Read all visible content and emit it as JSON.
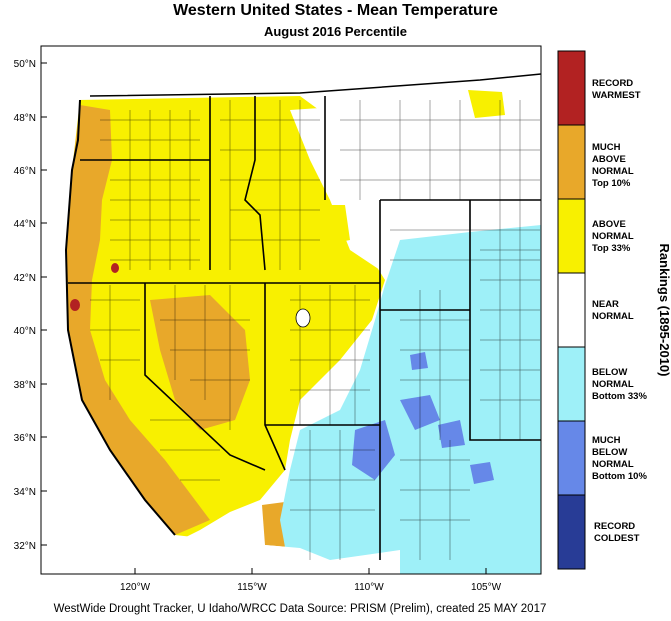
{
  "title": "Western United States - Mean Temperature",
  "subtitle": "August 2016 Percentile",
  "footer": "WestWide Drought Tracker, U Idaho/WRCC Data Source: PRISM (Prelim), created 25 MAY 2017",
  "legend": {
    "title": "Rankings (1895-2010)",
    "categories": [
      {
        "lines": [
          "RECORD",
          "WARMEST"
        ],
        "color": "#b22222"
      },
      {
        "lines": [
          "MUCH",
          "ABOVE",
          "NORMAL",
          "Top 10%"
        ],
        "color": "#e8a82a"
      },
      {
        "lines": [
          "ABOVE",
          "NORMAL",
          "Top 33%"
        ],
        "color": "#f8f000"
      },
      {
        "lines": [
          "NEAR",
          "NORMAL"
        ],
        "color": "#ffffff"
      },
      {
        "lines": [
          "BELOW",
          "NORMAL",
          "Bottom 33%"
        ],
        "color": "#9ef0f8"
      },
      {
        "lines": [
          "MUCH",
          "BELOW",
          "NORMAL",
          "Bottom 10%"
        ],
        "color": "#6688e8"
      },
      {
        "lines": [
          "RECORD",
          "COLDEST"
        ],
        "color": "#283c96"
      }
    ]
  },
  "axes": {
    "lat_labels": [
      "50°N",
      "48°N",
      "46°N",
      "44°N",
      "42°N",
      "40°N",
      "38°N",
      "36°N",
      "34°N",
      "32°N"
    ],
    "lon_labels": [
      "120°W",
      "115°W",
      "110°W",
      "105°W"
    ]
  }
}
